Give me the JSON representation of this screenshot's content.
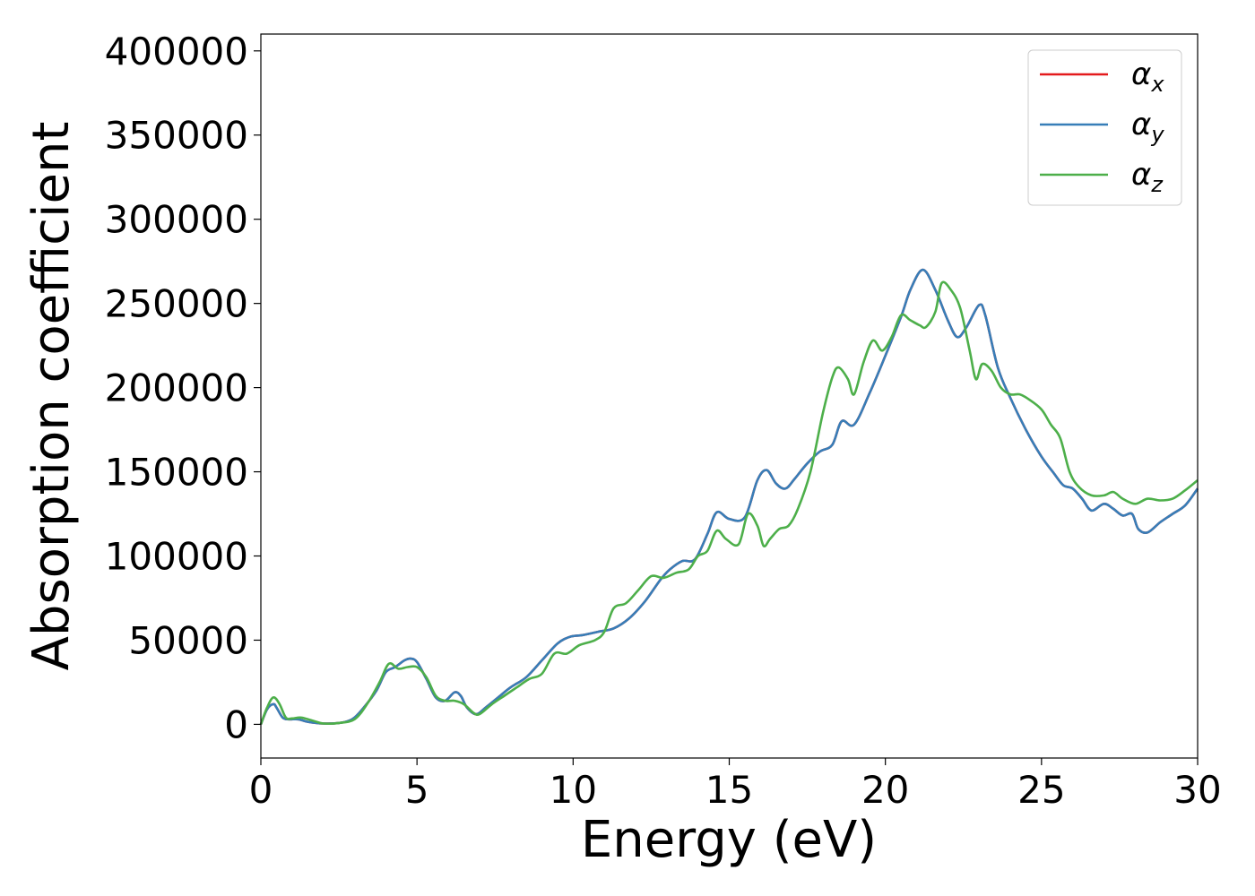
{
  "chart_data": {
    "type": "line",
    "xlabel": "Energy (eV)",
    "ylabel": "Absorption coefficient",
    "xlim": [
      0,
      30
    ],
    "ylim": [
      -20000,
      410000
    ],
    "xticks": [
      0,
      5,
      10,
      15,
      20,
      25,
      30
    ],
    "yticks": [
      0,
      50000,
      100000,
      150000,
      200000,
      250000,
      300000,
      350000,
      400000
    ],
    "grid": false,
    "legend_position": "top-right",
    "legend": [
      {
        "sym": "α",
        "sub": "x",
        "color": "#e41a1c"
      },
      {
        "sym": "α",
        "sub": "y",
        "color": "#377eb8"
      },
      {
        "sym": "α",
        "sub": "z",
        "color": "#4daf4a"
      }
    ],
    "series": [
      {
        "name": "α_x",
        "color": "#e41a1c",
        "x": [
          0,
          0.2,
          0.4,
          0.5,
          0.7,
          0.9,
          1.2,
          1.5,
          2.0,
          2.5,
          2.8,
          3.0,
          3.3,
          3.7,
          4.0,
          4.3,
          4.6,
          4.8,
          5.0,
          5.3,
          5.6,
          5.9,
          6.2,
          6.4,
          6.6,
          6.9,
          7.2,
          7.6,
          8.0,
          8.5,
          9.0,
          9.5,
          9.9,
          10.3,
          10.8,
          11.3,
          11.8,
          12.3,
          12.8,
          13.1,
          13.5,
          13.9,
          14.3,
          14.6,
          15.0,
          15.5,
          15.9,
          16.2,
          16.5,
          16.8,
          17.1,
          17.5,
          17.9,
          18.3,
          18.6,
          19.0,
          19.5,
          20.0,
          20.5,
          20.8,
          21.2,
          21.6,
          22.0,
          22.3,
          22.6,
          23.0,
          23.2,
          23.6,
          24.0,
          24.5,
          25.0,
          25.4,
          25.7,
          26.0,
          26.3,
          26.6,
          27.0,
          27.3,
          27.6,
          27.9,
          28.1,
          28.4,
          28.8,
          29.2,
          29.6,
          30.0
        ],
        "y": [
          0,
          9000,
          12000,
          10000,
          4000,
          3000,
          3000,
          1500,
          500,
          800,
          2000,
          4000,
          10000,
          20000,
          31000,
          34000,
          38000,
          39000,
          37000,
          27000,
          16000,
          14000,
          19000,
          17000,
          10000,
          6000,
          10000,
          16000,
          22000,
          28000,
          38000,
          48000,
          52000,
          53000,
          55000,
          57000,
          63000,
          73000,
          86000,
          92000,
          97000,
          98000,
          113000,
          126000,
          122000,
          123000,
          145000,
          151000,
          143000,
          140000,
          146000,
          155000,
          162000,
          166000,
          180000,
          178000,
          197000,
          219000,
          242000,
          258000,
          270000,
          258000,
          240000,
          230000,
          236000,
          249000,
          243000,
          212000,
          194000,
          175000,
          159000,
          149000,
          142000,
          140000,
          134000,
          127000,
          131000,
          128000,
          124000,
          125000,
          116000,
          114000,
          120000,
          125000,
          130000,
          140000
        ]
      },
      {
        "name": "α_y",
        "color": "#377eb8",
        "x": [
          0,
          0.2,
          0.4,
          0.5,
          0.7,
          0.9,
          1.2,
          1.5,
          2.0,
          2.5,
          2.8,
          3.0,
          3.3,
          3.7,
          4.0,
          4.3,
          4.6,
          4.8,
          5.0,
          5.3,
          5.6,
          5.9,
          6.2,
          6.4,
          6.6,
          6.9,
          7.2,
          7.6,
          8.0,
          8.5,
          9.0,
          9.5,
          9.9,
          10.3,
          10.8,
          11.3,
          11.8,
          12.3,
          12.8,
          13.1,
          13.5,
          13.9,
          14.3,
          14.6,
          15.0,
          15.5,
          15.9,
          16.2,
          16.5,
          16.8,
          17.1,
          17.5,
          17.9,
          18.3,
          18.6,
          19.0,
          19.5,
          20.0,
          20.5,
          20.8,
          21.2,
          21.6,
          22.0,
          22.3,
          22.6,
          23.0,
          23.2,
          23.6,
          24.0,
          24.5,
          25.0,
          25.4,
          25.7,
          26.0,
          26.3,
          26.6,
          27.0,
          27.3,
          27.6,
          27.9,
          28.1,
          28.4,
          28.8,
          29.2,
          29.6,
          30.0
        ],
        "y": [
          0,
          9000,
          12000,
          10000,
          4000,
          3000,
          3000,
          1500,
          500,
          800,
          2000,
          4000,
          10000,
          20000,
          31000,
          34000,
          38000,
          39000,
          37000,
          27000,
          16000,
          14000,
          19000,
          17000,
          10000,
          6000,
          10000,
          16000,
          22000,
          28000,
          38000,
          48000,
          52000,
          53000,
          55000,
          57000,
          63000,
          73000,
          86000,
          92000,
          97000,
          98000,
          113000,
          126000,
          122000,
          123000,
          145000,
          151000,
          143000,
          140000,
          146000,
          155000,
          162000,
          166000,
          180000,
          178000,
          197000,
          219000,
          242000,
          258000,
          270000,
          258000,
          240000,
          230000,
          236000,
          249000,
          243000,
          212000,
          194000,
          175000,
          159000,
          149000,
          142000,
          140000,
          134000,
          127000,
          131000,
          128000,
          124000,
          125000,
          116000,
          114000,
          120000,
          125000,
          130000,
          140000
        ]
      },
      {
        "name": "α_z",
        "color": "#4daf4a",
        "x": [
          0,
          0.2,
          0.4,
          0.6,
          0.8,
          1.0,
          1.3,
          1.7,
          2.0,
          2.5,
          3.0,
          3.4,
          3.8,
          4.1,
          4.4,
          4.7,
          5.0,
          5.3,
          5.6,
          5.9,
          6.2,
          6.5,
          6.8,
          7.0,
          7.4,
          7.8,
          8.2,
          8.6,
          9.0,
          9.4,
          9.8,
          10.2,
          10.7,
          11.0,
          11.3,
          11.7,
          12.1,
          12.5,
          12.9,
          13.3,
          13.7,
          14.0,
          14.3,
          14.6,
          14.9,
          15.3,
          15.6,
          15.9,
          16.1,
          16.3,
          16.6,
          16.9,
          17.2,
          17.6,
          18.0,
          18.3,
          18.5,
          18.8,
          19.0,
          19.3,
          19.6,
          19.9,
          20.2,
          20.5,
          20.8,
          21.1,
          21.3,
          21.6,
          21.8,
          22.1,
          22.4,
          22.7,
          22.9,
          23.1,
          23.4,
          23.7,
          24.0,
          24.3,
          24.6,
          25.0,
          25.3,
          25.6,
          25.9,
          26.2,
          26.6,
          27.0,
          27.3,
          27.6,
          28.0,
          28.4,
          28.8,
          29.2,
          29.6,
          30.0
        ],
        "y": [
          0,
          10000,
          16000,
          12000,
          4000,
          3500,
          4000,
          2000,
          500,
          800,
          3000,
          12000,
          25000,
          36000,
          33000,
          34000,
          34000,
          28000,
          17000,
          14000,
          14000,
          12000,
          7000,
          6000,
          12000,
          17000,
          22000,
          27000,
          30000,
          42000,
          42000,
          47000,
          50000,
          55000,
          69000,
          72000,
          80000,
          88000,
          87000,
          90000,
          92000,
          100000,
          103000,
          115000,
          110000,
          107000,
          125000,
          118000,
          106000,
          110000,
          116000,
          118000,
          128000,
          150000,
          185000,
          206000,
          212000,
          205000,
          196000,
          215000,
          228000,
          222000,
          230000,
          243000,
          240000,
          237000,
          236000,
          245000,
          262000,
          258000,
          247000,
          222000,
          205000,
          214000,
          210000,
          200000,
          196000,
          196000,
          193000,
          187000,
          178000,
          170000,
          150000,
          141000,
          136000,
          136000,
          138000,
          134000,
          131000,
          134000,
          133000,
          134000,
          139000,
          145000
        ]
      }
    ]
  }
}
